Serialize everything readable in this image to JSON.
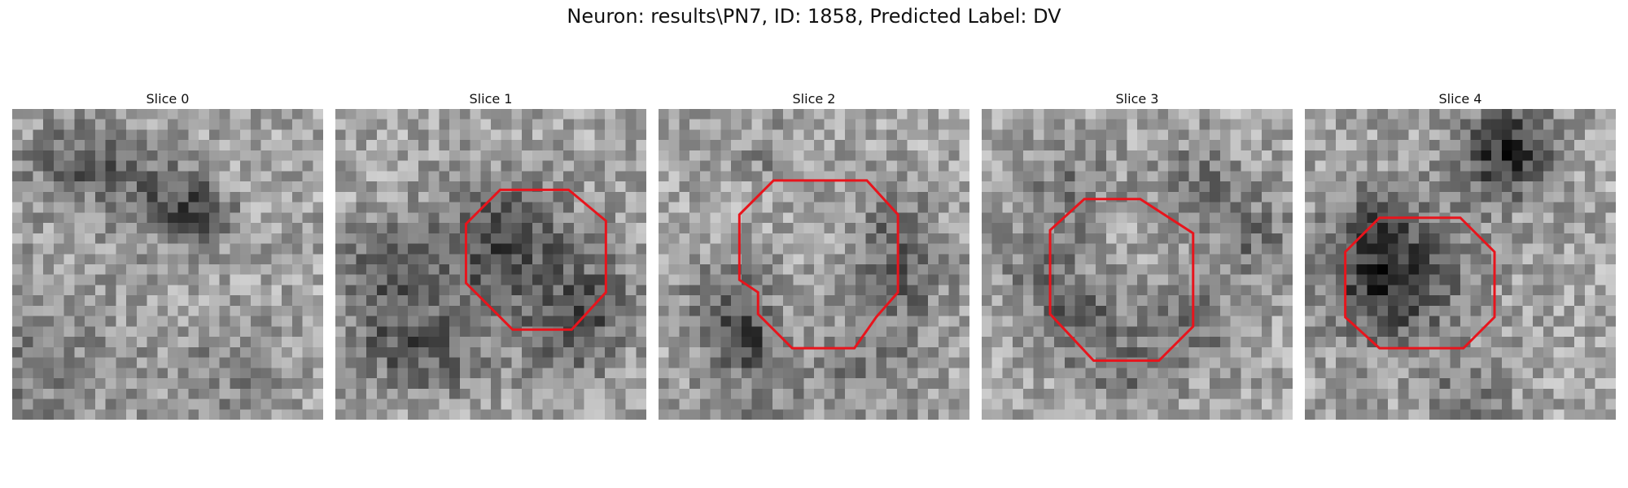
{
  "figure": {
    "title": "Neuron: results\\PN7, ID: 1858, Predicted Label: DV"
  },
  "style": {
    "contour_color": "#e8141c"
  },
  "slices": [
    {
      "label": "Slice 0",
      "seed": 11,
      "contour": []
    },
    {
      "label": "Slice 1",
      "seed": 23,
      "contour": [
        [
          0.53,
          0.26
        ],
        [
          0.75,
          0.26
        ],
        [
          0.87,
          0.36
        ],
        [
          0.87,
          0.59
        ],
        [
          0.76,
          0.71
        ],
        [
          0.57,
          0.71
        ],
        [
          0.42,
          0.56
        ],
        [
          0.42,
          0.37
        ]
      ]
    },
    {
      "label": "Slice 2",
      "seed": 37,
      "contour": [
        [
          0.37,
          0.23
        ],
        [
          0.67,
          0.23
        ],
        [
          0.77,
          0.34
        ],
        [
          0.77,
          0.59
        ],
        [
          0.7,
          0.67
        ],
        [
          0.63,
          0.77
        ],
        [
          0.43,
          0.77
        ],
        [
          0.32,
          0.66
        ],
        [
          0.32,
          0.59
        ],
        [
          0.26,
          0.55
        ],
        [
          0.26,
          0.34
        ]
      ]
    },
    {
      "label": "Slice 3",
      "seed": 51,
      "contour": [
        [
          0.33,
          0.29
        ],
        [
          0.51,
          0.29
        ],
        [
          0.68,
          0.4
        ],
        [
          0.68,
          0.7
        ],
        [
          0.57,
          0.81
        ],
        [
          0.36,
          0.81
        ],
        [
          0.22,
          0.66
        ],
        [
          0.22,
          0.39
        ]
      ]
    },
    {
      "label": "Slice 4",
      "seed": 67,
      "contour": [
        [
          0.24,
          0.35
        ],
        [
          0.5,
          0.35
        ],
        [
          0.61,
          0.46
        ],
        [
          0.61,
          0.67
        ],
        [
          0.51,
          0.77
        ],
        [
          0.24,
          0.77
        ],
        [
          0.13,
          0.67
        ],
        [
          0.13,
          0.46
        ]
      ]
    }
  ]
}
